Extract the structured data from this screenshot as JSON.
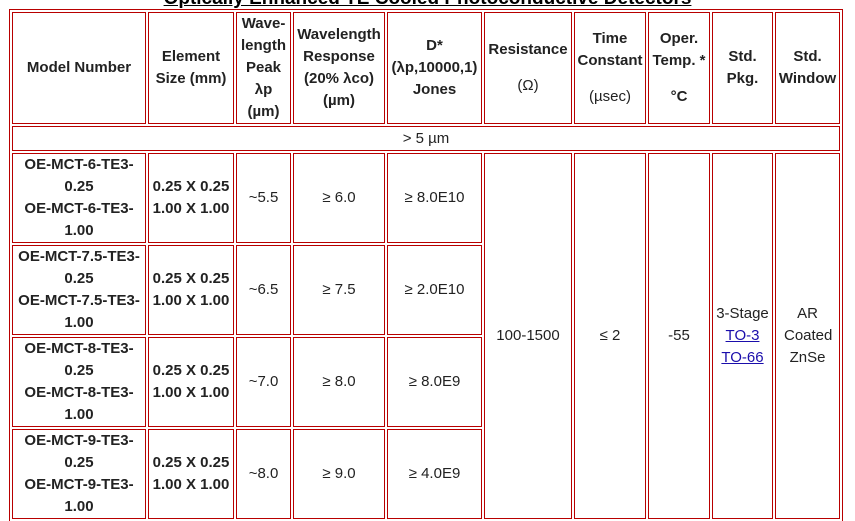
{
  "title": "Optically Enhanced TE Cooled Photoconductive Detectors",
  "table": {
    "headers": [
      {
        "label": "Model Number"
      },
      {
        "label": "Element Size (mm)"
      },
      {
        "label": "Wave-length Peak λp (µm)"
      },
      {
        "label": "Wavelength Response (20% λco) (µm)"
      },
      {
        "label": "D* (λp,10000,1) Jones"
      },
      {
        "label": "Resistance",
        "unit": "(Ω)"
      },
      {
        "label": "Time Constant",
        "unit": "(µsec)"
      },
      {
        "label": "Oper. Temp. *",
        "unit": "°C"
      },
      {
        "label": "Std. Pkg."
      },
      {
        "label": "Std. Window"
      }
    ],
    "section": "> 5 µm",
    "rows": [
      {
        "models": [
          "OE-MCT-6-TE3-0.25",
          "OE-MCT-6-TE3-1.00"
        ],
        "sizes": [
          "0.25 X 0.25",
          "1.00 X 1.00"
        ],
        "peak": "~5.5",
        "response": "≥ 6.0",
        "detectivity": "≥ 8.0E10"
      },
      {
        "models": [
          "OE-MCT-7.5-TE3-0.25",
          "OE-MCT-7.5-TE3-1.00"
        ],
        "sizes": [
          "0.25 X 0.25",
          "1.00 X 1.00"
        ],
        "peak": "~6.5",
        "response": "≥ 7.5",
        "detectivity": "≥ 2.0E10"
      },
      {
        "models": [
          "OE-MCT-8-TE3-0.25",
          "OE-MCT-8-TE3-1.00"
        ],
        "sizes": [
          "0.25 X 0.25",
          "1.00 X 1.00"
        ],
        "peak": "~7.0",
        "response": "≥ 8.0",
        "detectivity": "≥ 8.0E9"
      },
      {
        "models": [
          "OE-MCT-9-TE3-0.25",
          "OE-MCT-9-TE3-1.00"
        ],
        "sizes": [
          "0.25 X 0.25",
          "1.00 X 1.00"
        ],
        "peak": "~8.0",
        "response": "≥ 9.0",
        "detectivity": "≥ 4.0E9"
      }
    ],
    "shared": {
      "resistance": "100-1500",
      "time_constant": "≤ 2",
      "temperature": "-55",
      "package": {
        "stages": "3-Stage",
        "links": [
          "TO-3",
          "TO-66"
        ]
      },
      "window": "AR Coated ZnSe"
    }
  }
}
